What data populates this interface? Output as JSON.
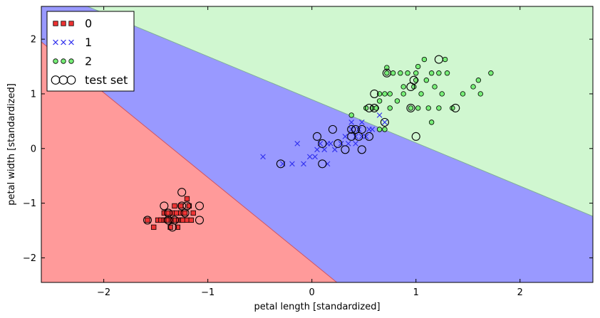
{
  "chart_data": {
    "type": "scatter",
    "title": "",
    "xlabel": "petal length [standardized]",
    "ylabel": "petal width [standardized]",
    "xlim": [
      -2.6,
      2.7
    ],
    "ylim": [
      -2.45,
      2.6
    ],
    "xticks": [
      -2,
      -1,
      0,
      1,
      2
    ],
    "yticks": [
      -2,
      -1,
      0,
      1,
      2
    ],
    "xtick_labels": [
      "−2",
      "−1",
      "0",
      "1",
      "2"
    ],
    "ytick_labels": [
      "−2",
      "−1",
      "0",
      "1",
      "2"
    ],
    "grid": false,
    "legend_position": "top-left",
    "decision_regions": [
      {
        "class": "0",
        "color": "#ff9a9a",
        "boundary_line": [
          [
            -2.6,
            1.95
          ],
          [
            0.24,
            -2.45
          ]
        ]
      },
      {
        "class": "1",
        "color": "#9999ff"
      },
      {
        "class": "2",
        "color": "#d0f7d0",
        "boundary_line": [
          [
            -2.6,
            2.95
          ],
          [
            2.7,
            -1.24
          ]
        ]
      }
    ],
    "series": [
      {
        "name": "0",
        "marker": "square",
        "color": "#ee3333",
        "points": [
          [
            -1.58,
            -1.31
          ],
          [
            -1.52,
            -1.44
          ],
          [
            -1.48,
            -1.31
          ],
          [
            -1.45,
            -1.31
          ],
          [
            -1.42,
            -1.31
          ],
          [
            -1.42,
            -1.18
          ],
          [
            -1.4,
            -1.31
          ],
          [
            -1.38,
            -1.31
          ],
          [
            -1.38,
            -1.18
          ],
          [
            -1.36,
            -1.44
          ],
          [
            -1.35,
            -1.31
          ],
          [
            -1.34,
            -1.18
          ],
          [
            -1.32,
            -1.05
          ],
          [
            -1.31,
            -1.31
          ],
          [
            -1.3,
            -1.18
          ],
          [
            -1.29,
            -1.44
          ],
          [
            -1.28,
            -1.31
          ],
          [
            -1.26,
            -1.05
          ],
          [
            -1.26,
            -1.18
          ],
          [
            -1.25,
            -1.31
          ],
          [
            -1.24,
            -1.31
          ],
          [
            -1.22,
            -1.18
          ],
          [
            -1.2,
            -0.92
          ],
          [
            -1.2,
            -1.31
          ],
          [
            -1.18,
            -1.05
          ],
          [
            -1.16,
            -1.31
          ],
          [
            -1.14,
            -1.18
          ]
        ]
      },
      {
        "name": "1",
        "marker": "x",
        "color": "#3333ee",
        "points": [
          [
            -0.47,
            -0.15
          ],
          [
            -0.28,
            -0.28
          ],
          [
            -0.19,
            -0.28
          ],
          [
            -0.14,
            0.09
          ],
          [
            -0.08,
            -0.28
          ],
          [
            -0.02,
            -0.15
          ],
          [
            0.03,
            -0.15
          ],
          [
            0.05,
            -0.02
          ],
          [
            0.08,
            0.09
          ],
          [
            0.12,
            -0.02
          ],
          [
            0.15,
            0.09
          ],
          [
            0.15,
            -0.28
          ],
          [
            0.18,
            0.09
          ],
          [
            0.22,
            -0.02
          ],
          [
            0.28,
            0.09
          ],
          [
            0.32,
            0.22
          ],
          [
            0.35,
            0.09
          ],
          [
            0.38,
            0.35
          ],
          [
            0.38,
            0.48
          ],
          [
            0.42,
            0.09
          ],
          [
            0.42,
            0.22
          ],
          [
            0.45,
            0.35
          ],
          [
            0.48,
            0.22
          ],
          [
            0.48,
            0.48
          ],
          [
            0.52,
            0.22
          ],
          [
            0.55,
            0.35
          ],
          [
            0.58,
            0.35
          ],
          [
            0.65,
            0.61
          ],
          [
            0.7,
            0.48
          ]
        ]
      },
      {
        "name": "2",
        "marker": "circle",
        "color": "#77ee77",
        "points": [
          [
            0.38,
            0.61
          ],
          [
            0.52,
            0.74
          ],
          [
            0.58,
            0.74
          ],
          [
            0.62,
            0.74
          ],
          [
            0.65,
            0.35
          ],
          [
            0.65,
            0.87
          ],
          [
            0.65,
            1.0
          ],
          [
            0.7,
            0.35
          ],
          [
            0.7,
            1.0
          ],
          [
            0.72,
            1.38
          ],
          [
            0.72,
            1.48
          ],
          [
            0.75,
            0.74
          ],
          [
            0.75,
            1.0
          ],
          [
            0.78,
            1.38
          ],
          [
            0.82,
            0.87
          ],
          [
            0.85,
            1.38
          ],
          [
            0.88,
            1.0
          ],
          [
            0.88,
            1.13
          ],
          [
            0.92,
            1.38
          ],
          [
            0.95,
            0.74
          ],
          [
            0.98,
            1.13
          ],
          [
            1.0,
            1.25
          ],
          [
            1.0,
            1.38
          ],
          [
            1.02,
            1.5
          ],
          [
            1.02,
            0.74
          ],
          [
            1.05,
            1.0
          ],
          [
            1.08,
            1.63
          ],
          [
            1.1,
            1.25
          ],
          [
            1.12,
            0.74
          ],
          [
            1.15,
            0.48
          ],
          [
            1.15,
            1.38
          ],
          [
            1.18,
            1.13
          ],
          [
            1.22,
            0.74
          ],
          [
            1.22,
            1.38
          ],
          [
            1.25,
            1.0
          ],
          [
            1.28,
            1.63
          ],
          [
            1.3,
            1.38
          ],
          [
            1.35,
            0.74
          ],
          [
            1.45,
            1.0
          ],
          [
            1.55,
            1.13
          ],
          [
            1.6,
            1.25
          ],
          [
            1.62,
            1.0
          ],
          [
            1.72,
            1.38
          ]
        ]
      },
      {
        "name": "test set",
        "marker": "open-circle",
        "color": "#000000",
        "points": [
          [
            -1.58,
            -1.31
          ],
          [
            -1.42,
            -1.05
          ],
          [
            -1.38,
            -1.18
          ],
          [
            -1.38,
            -1.31
          ],
          [
            -1.34,
            -1.44
          ],
          [
            -1.32,
            -1.31
          ],
          [
            -1.25,
            -0.8
          ],
          [
            -1.25,
            -1.05
          ],
          [
            -1.22,
            -1.18
          ],
          [
            -1.2,
            -1.05
          ],
          [
            -1.08,
            -1.05
          ],
          [
            -1.08,
            -1.31
          ],
          [
            -0.3,
            -0.28
          ],
          [
            0.05,
            0.22
          ],
          [
            0.1,
            0.09
          ],
          [
            0.1,
            -0.28
          ],
          [
            0.2,
            0.35
          ],
          [
            0.25,
            0.09
          ],
          [
            0.32,
            -0.02
          ],
          [
            0.38,
            0.22
          ],
          [
            0.38,
            0.35
          ],
          [
            0.42,
            0.35
          ],
          [
            0.45,
            0.22
          ],
          [
            0.48,
            -0.02
          ],
          [
            0.48,
            0.35
          ],
          [
            0.55,
            0.22
          ],
          [
            0.55,
            0.74
          ],
          [
            0.6,
            1.0
          ],
          [
            0.6,
            0.74
          ],
          [
            0.7,
            0.48
          ],
          [
            0.72,
            1.38
          ],
          [
            0.95,
            0.74
          ],
          [
            0.95,
            1.13
          ],
          [
            0.98,
            1.25
          ],
          [
            1.0,
            0.22
          ],
          [
            1.22,
            1.63
          ],
          [
            1.38,
            0.74
          ]
        ]
      }
    ]
  }
}
